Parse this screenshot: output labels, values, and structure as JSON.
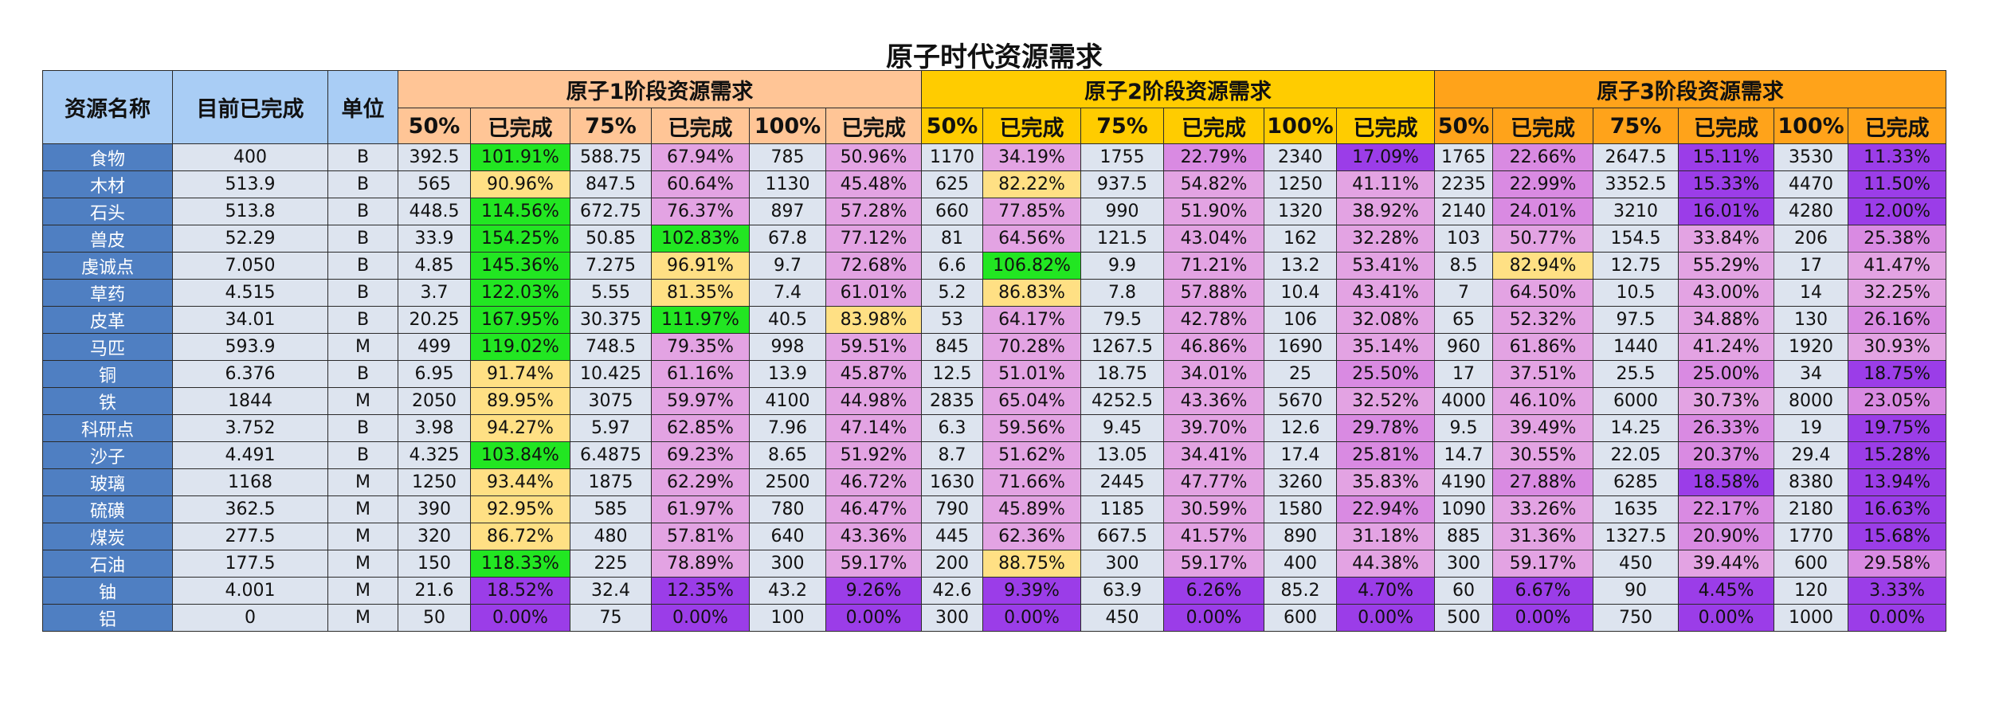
{
  "title": "原子时代资源需求",
  "table": {
    "header": {
      "name": "资源名称",
      "done": "目前已完成",
      "unit": "单位",
      "groups": [
        {
          "title": "原子1阶段资源需求",
          "color": "#ffc596",
          "columns": [
            "50%",
            "已完成",
            "75%",
            "已完成",
            "100%",
            "已完成"
          ]
        },
        {
          "title": "原子2阶段资源需求",
          "color": "#ffcc00",
          "columns": [
            "50%",
            "已完成",
            "75%",
            "已完成",
            "100%",
            "已完成"
          ]
        },
        {
          "title": "原子3阶段资源需求",
          "color": "#ffa31a",
          "columns": [
            "50%",
            "已完成",
            "75%",
            "已完成",
            "100%",
            "已完成"
          ]
        }
      ]
    },
    "rows": [
      [
        "食物",
        "400",
        "B",
        "392.5",
        "101.91%",
        "588.75",
        "67.94%",
        "785",
        "50.96%",
        "1170",
        "34.19%",
        "1755",
        "22.79%",
        "2340",
        "17.09%",
        "1765",
        "22.66%",
        "2647.5",
        "15.11%",
        "3530",
        "11.33%"
      ],
      [
        "木材",
        "513.9",
        "B",
        "565",
        "90.96%",
        "847.5",
        "60.64%",
        "1130",
        "45.48%",
        "625",
        "82.22%",
        "937.5",
        "54.82%",
        "1250",
        "41.11%",
        "2235",
        "22.99%",
        "3352.5",
        "15.33%",
        "4470",
        "11.50%"
      ],
      [
        "石头",
        "513.8",
        "B",
        "448.5",
        "114.56%",
        "672.75",
        "76.37%",
        "897",
        "57.28%",
        "660",
        "77.85%",
        "990",
        "51.90%",
        "1320",
        "38.92%",
        "2140",
        "24.01%",
        "3210",
        "16.01%",
        "4280",
        "12.00%"
      ],
      [
        "兽皮",
        "52.29",
        "B",
        "33.9",
        "154.25%",
        "50.85",
        "102.83%",
        "67.8",
        "77.12%",
        "81",
        "64.56%",
        "121.5",
        "43.04%",
        "162",
        "32.28%",
        "103",
        "50.77%",
        "154.5",
        "33.84%",
        "206",
        "25.38%"
      ],
      [
        "虔诚点",
        "7.050",
        "B",
        "4.85",
        "145.36%",
        "7.275",
        "96.91%",
        "9.7",
        "72.68%",
        "6.6",
        "106.82%",
        "9.9",
        "71.21%",
        "13.2",
        "53.41%",
        "8.5",
        "82.94%",
        "12.75",
        "55.29%",
        "17",
        "41.47%"
      ],
      [
        "草药",
        "4.515",
        "B",
        "3.7",
        "122.03%",
        "5.55",
        "81.35%",
        "7.4",
        "61.01%",
        "5.2",
        "86.83%",
        "7.8",
        "57.88%",
        "10.4",
        "43.41%",
        "7",
        "64.50%",
        "10.5",
        "43.00%",
        "14",
        "32.25%"
      ],
      [
        "皮革",
        "34.01",
        "B",
        "20.25",
        "167.95%",
        "30.375",
        "111.97%",
        "40.5",
        "83.98%",
        "53",
        "64.17%",
        "79.5",
        "42.78%",
        "106",
        "32.08%",
        "65",
        "52.32%",
        "97.5",
        "34.88%",
        "130",
        "26.16%"
      ],
      [
        "马匹",
        "593.9",
        "M",
        "499",
        "119.02%",
        "748.5",
        "79.35%",
        "998",
        "59.51%",
        "845",
        "70.28%",
        "1267.5",
        "46.86%",
        "1690",
        "35.14%",
        "960",
        "61.86%",
        "1440",
        "41.24%",
        "1920",
        "30.93%"
      ],
      [
        "铜",
        "6.376",
        "B",
        "6.95",
        "91.74%",
        "10.425",
        "61.16%",
        "13.9",
        "45.87%",
        "12.5",
        "51.01%",
        "18.75",
        "34.01%",
        "25",
        "25.50%",
        "17",
        "37.51%",
        "25.5",
        "25.00%",
        "34",
        "18.75%"
      ],
      [
        "铁",
        "1844",
        "M",
        "2050",
        "89.95%",
        "3075",
        "59.97%",
        "4100",
        "44.98%",
        "2835",
        "65.04%",
        "4252.5",
        "43.36%",
        "5670",
        "32.52%",
        "4000",
        "46.10%",
        "6000",
        "30.73%",
        "8000",
        "23.05%"
      ],
      [
        "科研点",
        "3.752",
        "B",
        "3.98",
        "94.27%",
        "5.97",
        "62.85%",
        "7.96",
        "47.14%",
        "6.3",
        "59.56%",
        "9.45",
        "39.70%",
        "12.6",
        "29.78%",
        "9.5",
        "39.49%",
        "14.25",
        "26.33%",
        "19",
        "19.75%"
      ],
      [
        "沙子",
        "4.491",
        "B",
        "4.325",
        "103.84%",
        "6.4875",
        "69.23%",
        "8.65",
        "51.92%",
        "8.7",
        "51.62%",
        "13.05",
        "34.41%",
        "17.4",
        "25.81%",
        "14.7",
        "30.55%",
        "22.05",
        "20.37%",
        "29.4",
        "15.28%"
      ],
      [
        "玻璃",
        "1168",
        "M",
        "1250",
        "93.44%",
        "1875",
        "62.29%",
        "2500",
        "46.72%",
        "1630",
        "71.66%",
        "2445",
        "47.77%",
        "3260",
        "35.83%",
        "4190",
        "27.88%",
        "6285",
        "18.58%",
        "8380",
        "13.94%"
      ],
      [
        "硫磺",
        "362.5",
        "M",
        "390",
        "92.95%",
        "585",
        "61.97%",
        "780",
        "46.47%",
        "790",
        "45.89%",
        "1185",
        "30.59%",
        "1580",
        "22.94%",
        "1090",
        "33.26%",
        "1635",
        "22.17%",
        "2180",
        "16.63%"
      ],
      [
        "煤炭",
        "277.5",
        "M",
        "320",
        "86.72%",
        "480",
        "57.81%",
        "640",
        "43.36%",
        "445",
        "62.36%",
        "667.5",
        "41.57%",
        "890",
        "31.18%",
        "885",
        "31.36%",
        "1327.5",
        "20.90%",
        "1770",
        "15.68%"
      ],
      [
        "石油",
        "177.5",
        "M",
        "150",
        "118.33%",
        "225",
        "78.89%",
        "300",
        "59.17%",
        "200",
        "88.75%",
        "300",
        "59.17%",
        "400",
        "44.38%",
        "300",
        "59.17%",
        "450",
        "39.44%",
        "600",
        "29.58%"
      ],
      [
        "铀",
        "4.001",
        "M",
        "21.6",
        "18.52%",
        "32.4",
        "12.35%",
        "43.2",
        "9.26%",
        "42.6",
        "9.39%",
        "63.9",
        "6.26%",
        "85.2",
        "4.70%",
        "60",
        "6.67%",
        "90",
        "4.45%",
        "120",
        "3.33%"
      ],
      [
        "铝",
        "0",
        "M",
        "50",
        "0.00%",
        "75",
        "0.00%",
        "100",
        "0.00%",
        "300",
        "0.00%",
        "450",
        "0.00%",
        "600",
        "0.00%",
        "500",
        "0.00%",
        "750",
        "0.00%",
        "1000",
        "0.00%"
      ]
    ]
  },
  "cell_colors": [
    {
      "from": 100,
      "color": "#22e622"
    },
    {
      "from": 80,
      "color": "#ffe084"
    },
    {
      "from": 30,
      "color": "#e3a3e3"
    },
    {
      "from": 20,
      "color": "#d98ae2"
    },
    {
      "from": 0,
      "color": "#9b3de8"
    }
  ]
}
